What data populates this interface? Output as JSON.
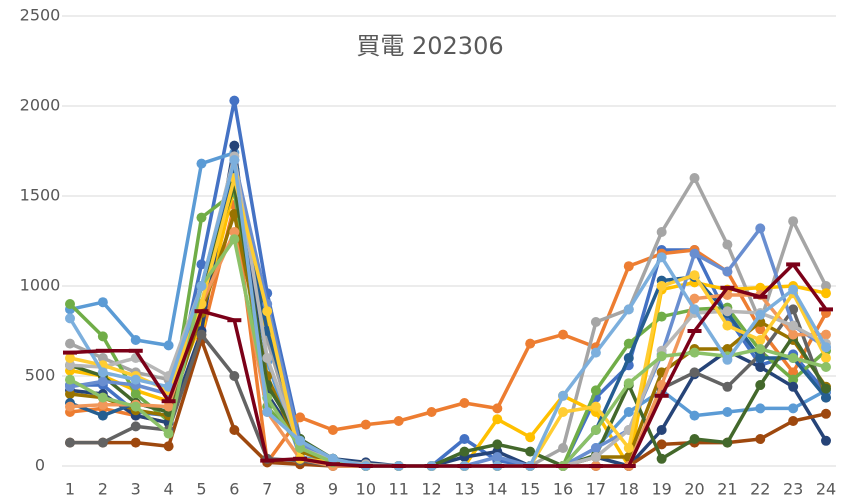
{
  "chart_data": {
    "type": "line",
    "title": "買電 202306",
    "categories": [
      "1",
      "2",
      "3",
      "4",
      "5",
      "6",
      "7",
      "8",
      "9",
      "10",
      "11",
      "12",
      "13",
      "14",
      "15",
      "16",
      "17",
      "18",
      "19",
      "20",
      "21",
      "22",
      "23",
      "24"
    ],
    "ylim": [
      0,
      2500
    ],
    "yticks": [
      0,
      500,
      1000,
      1500,
      2000,
      2500
    ],
    "grid": true,
    "series": [
      {
        "color": "#4472c4",
        "marker": "circle",
        "values": [
          450,
          450,
          300,
          280,
          1120,
          2030,
          960,
          150,
          30,
          10,
          0,
          0,
          150,
          30,
          0,
          0,
          380,
          560,
          1200,
          1200,
          830,
          560,
          620,
          410
        ]
      },
      {
        "color": "#ed7d31",
        "marker": "circle",
        "values": [
          300,
          320,
          280,
          240,
          710,
          1450,
          20,
          270,
          200,
          230,
          250,
          300,
          350,
          320,
          680,
          730,
          660,
          1110,
          1180,
          1200,
          1080,
          760,
          520,
          850
        ]
      },
      {
        "color": "#a5a5a5",
        "marker": "circle",
        "values": [
          680,
          600,
          520,
          480,
          900,
          1700,
          700,
          100,
          30,
          10,
          0,
          0,
          0,
          0,
          0,
          100,
          800,
          870,
          1300,
          1600,
          1230,
          800,
          1360,
          1000
        ]
      },
      {
        "color": "#ffc000",
        "marker": "circle",
        "values": [
          530,
          500,
          420,
          360,
          800,
          1550,
          800,
          150,
          20,
          0,
          0,
          0,
          0,
          260,
          160,
          390,
          300,
          0,
          980,
          1020,
          980,
          990,
          1000,
          960
        ]
      },
      {
        "color": "#5b9bd5",
        "marker": "circle",
        "values": [
          870,
          910,
          700,
          670,
          1680,
          1740,
          580,
          50,
          20,
          0,
          0,
          0,
          0,
          0,
          0,
          0,
          100,
          300,
          420,
          280,
          300,
          320,
          320,
          420
        ]
      },
      {
        "color": "#70ad47",
        "marker": "circle",
        "values": [
          900,
          720,
          400,
          250,
          1380,
          1520,
          330,
          120,
          40,
          10,
          0,
          0,
          0,
          0,
          0,
          0,
          420,
          680,
          830,
          870,
          880,
          640,
          480,
          640
        ]
      },
      {
        "color": "#264478",
        "marker": "circle",
        "values": [
          420,
          400,
          280,
          240,
          750,
          1780,
          400,
          120,
          40,
          20,
          0,
          0,
          50,
          80,
          0,
          0,
          50,
          0,
          200,
          510,
          640,
          550,
          440,
          140
        ]
      },
      {
        "color": "#9e480e",
        "marker": "circle",
        "values": [
          130,
          130,
          130,
          110,
          700,
          200,
          20,
          10,
          0,
          0,
          0,
          0,
          0,
          0,
          0,
          0,
          0,
          0,
          120,
          130,
          130,
          150,
          250,
          290
        ]
      },
      {
        "color": "#636363",
        "marker": "circle",
        "values": [
          130,
          130,
          220,
          200,
          730,
          500,
          40,
          30,
          0,
          0,
          0,
          0,
          0,
          0,
          0,
          0,
          0,
          0,
          430,
          520,
          440,
          620,
          870,
          380
        ]
      },
      {
        "color": "#997300",
        "marker": "circle",
        "values": [
          400,
          380,
          310,
          280,
          850,
          1400,
          500,
          80,
          20,
          0,
          0,
          0,
          0,
          0,
          0,
          0,
          50,
          50,
          520,
          650,
          650,
          800,
          700,
          440
        ]
      },
      {
        "color": "#255e91",
        "marker": "circle",
        "values": [
          350,
          280,
          350,
          300,
          1000,
          1650,
          750,
          150,
          30,
          0,
          0,
          0,
          0,
          0,
          0,
          0,
          200,
          600,
          1030,
          1050,
          850,
          600,
          600,
          380
        ]
      },
      {
        "color": "#43682b",
        "marker": "circle",
        "values": [
          560,
          500,
          350,
          300,
          1000,
          1560,
          450,
          150,
          40,
          0,
          0,
          0,
          80,
          120,
          80,
          0,
          60,
          450,
          40,
          150,
          130,
          450,
          720,
          430
        ]
      },
      {
        "color": "#698ed0",
        "marker": "circle",
        "values": [
          440,
          470,
          450,
          400,
          1000,
          1700,
          900,
          120,
          30,
          0,
          0,
          0,
          0,
          50,
          0,
          0,
          100,
          200,
          620,
          1180,
          1080,
          1320,
          780,
          660
        ]
      },
      {
        "color": "#f1975a",
        "marker": "circle",
        "values": [
          330,
          340,
          340,
          330,
          900,
          1300,
          300,
          40,
          0,
          0,
          0,
          0,
          0,
          0,
          0,
          0,
          0,
          0,
          450,
          930,
          950,
          950,
          730,
          730
        ]
      },
      {
        "color": "#b7b7b7",
        "marker": "circle",
        "values": [
          560,
          550,
          600,
          500,
          1000,
          1720,
          600,
          100,
          30,
          10,
          0,
          0,
          0,
          0,
          0,
          0,
          50,
          200,
          640,
          850,
          860,
          850,
          780,
          680
        ]
      },
      {
        "color": "#ffcd33",
        "marker": "circle",
        "values": [
          600,
          560,
          500,
          420,
          900,
          1600,
          860,
          40,
          20,
          0,
          0,
          0,
          0,
          0,
          0,
          300,
          330,
          100,
          1000,
          1060,
          780,
          700,
          960,
          600
        ]
      },
      {
        "color": "#8cc168",
        "marker": "circle",
        "values": [
          480,
          380,
          330,
          180,
          1000,
          1260,
          380,
          100,
          20,
          0,
          0,
          0,
          0,
          0,
          0,
          0,
          200,
          460,
          610,
          630,
          610,
          650,
          600,
          550
        ]
      },
      {
        "color": "#7cafdd",
        "marker": "circle",
        "values": [
          820,
          520,
          480,
          440,
          1000,
          1700,
          300,
          140,
          40,
          0,
          0,
          0,
          0,
          0,
          0,
          390,
          630,
          870,
          1160,
          870,
          590,
          840,
          980,
          660
        ]
      },
      {
        "color": "#7b0018",
        "marker": "dash",
        "values": [
          630,
          640,
          640,
          360,
          860,
          810,
          30,
          40,
          10,
          0,
          0,
          0,
          0,
          0,
          0,
          0,
          0,
          0,
          390,
          750,
          990,
          940,
          1120,
          870
        ]
      }
    ]
  }
}
